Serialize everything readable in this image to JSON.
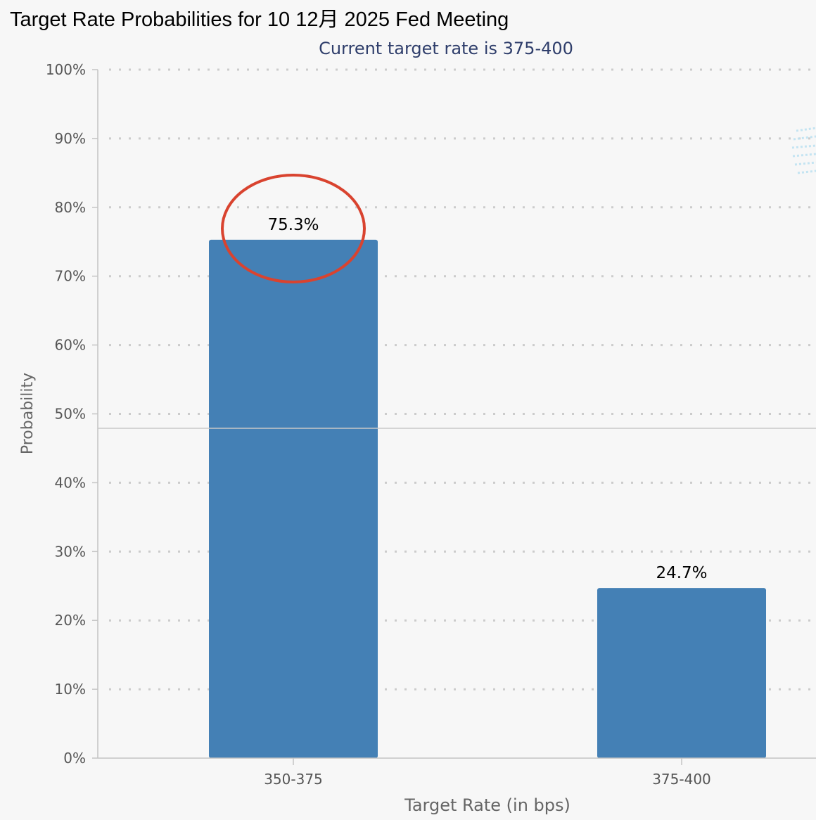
{
  "chart_data": {
    "type": "bar",
    "title": "Target Rate Probabilities for 10 12月 2025 Fed Meeting",
    "subtitle": "Current target rate is 375-400",
    "xlabel": "Target Rate (in bps)",
    "ylabel": "Probability",
    "categories": [
      "350-375",
      "375-400"
    ],
    "values": [
      75.3,
      24.7
    ],
    "data_labels": [
      "75.3%",
      "24.7%"
    ],
    "ylim": [
      0,
      100
    ],
    "y_ticks": [
      "0%",
      "10%",
      "20%",
      "30%",
      "40%",
      "50%",
      "60%",
      "70%",
      "80%",
      "90%",
      "100%"
    ],
    "grid": "dotted horizontal",
    "highlight": "red ellipse around the 75.3% label",
    "colors": {
      "bar": "#4480b5",
      "highlight": "#d9432f",
      "subtitle": "#2f3e6b",
      "axis_text": "#555555",
      "grid": "#cccccc"
    }
  }
}
